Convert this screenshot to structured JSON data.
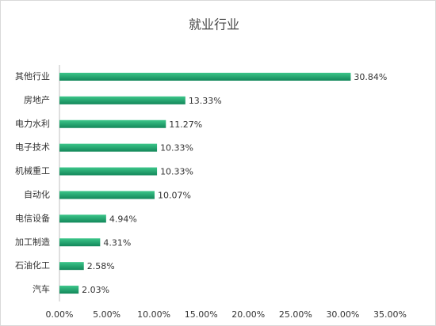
{
  "chart_data": {
    "type": "bar",
    "orientation": "horizontal",
    "title": "就业行业",
    "categories": [
      "其他行业",
      "房地产",
      "电力水利",
      "电子技术",
      "机械重工",
      "自动化",
      "电信设备",
      "加工制造",
      "石油化工",
      "汽车"
    ],
    "values": [
      30.84,
      13.33,
      11.27,
      10.33,
      10.33,
      10.07,
      4.94,
      4.31,
      2.58,
      2.03
    ],
    "value_labels": [
      "30.84%",
      "13.33%",
      "11.27%",
      "10.33%",
      "10.33%",
      "10.07%",
      "4.94%",
      "4.31%",
      "2.58%",
      "2.03%"
    ],
    "color": "#1f9e6b",
    "xlim": [
      0,
      35
    ],
    "xticks": [
      {
        "value": 0,
        "label": "0.00%"
      },
      {
        "value": 5,
        "label": "5.00%"
      },
      {
        "value": 10,
        "label": "10.00%"
      },
      {
        "value": 15,
        "label": "15.00%"
      },
      {
        "value": 20,
        "label": "20.00%"
      },
      {
        "value": 25,
        "label": "25.00%"
      },
      {
        "value": 30,
        "label": "30.00%"
      },
      {
        "value": 35,
        "label": "35.00%"
      }
    ],
    "grid": false
  }
}
